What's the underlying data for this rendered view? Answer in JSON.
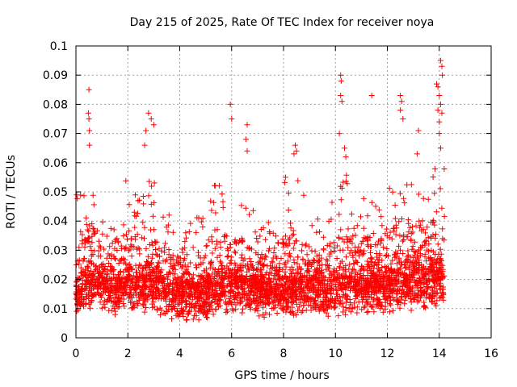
{
  "chart_data": {
    "type": "scatter",
    "title": "Day 215 of 2025, Rate Of TEC Index for receiver noya",
    "xlabel": "GPS time / hours",
    "ylabel": "ROTI / TECUs",
    "xlim": [
      0,
      16
    ],
    "ylim": [
      0,
      0.1
    ],
    "x_ticks": [
      "0",
      "2",
      "4",
      "6",
      "8",
      "10",
      "12",
      "14",
      "16"
    ],
    "y_ticks": [
      "0",
      "0.01",
      "0.02",
      "0.03",
      "0.04",
      "0.05",
      "0.06",
      "0.07",
      "0.08",
      "0.09",
      "0.1"
    ],
    "grid": true,
    "marker": "+",
    "color": "#ff0000",
    "x_data_range": [
      0,
      14.2
    ],
    "envelope": {
      "x": [
        0,
        0.25,
        0.5,
        0.75,
        1.0,
        1.25,
        1.5,
        1.75,
        2.0,
        2.25,
        2.5,
        2.75,
        3.0,
        3.25,
        3.5,
        3.75,
        4.0,
        4.25,
        4.5,
        4.75,
        5.0,
        5.25,
        5.5,
        5.75,
        6.0,
        6.25,
        6.5,
        6.75,
        7.0,
        7.25,
        7.5,
        7.75,
        8.0,
        8.25,
        8.5,
        8.75,
        9.0,
        9.25,
        9.5,
        9.75,
        10.0,
        10.25,
        10.5,
        10.75,
        11.0,
        11.25,
        11.5,
        11.75,
        12.0,
        12.25,
        12.5,
        12.75,
        13.0,
        13.25,
        13.5,
        13.75,
        14.0,
        14.2
      ],
      "median": [
        0.014,
        0.016,
        0.018,
        0.018,
        0.017,
        0.016,
        0.016,
        0.017,
        0.018,
        0.017,
        0.017,
        0.018,
        0.017,
        0.016,
        0.015,
        0.014,
        0.014,
        0.014,
        0.014,
        0.014,
        0.015,
        0.016,
        0.017,
        0.017,
        0.017,
        0.017,
        0.017,
        0.017,
        0.016,
        0.016,
        0.016,
        0.016,
        0.016,
        0.016,
        0.016,
        0.016,
        0.016,
        0.016,
        0.016,
        0.016,
        0.017,
        0.017,
        0.017,
        0.017,
        0.017,
        0.017,
        0.017,
        0.017,
        0.018,
        0.018,
        0.019,
        0.019,
        0.019,
        0.019,
        0.019,
        0.019,
        0.02,
        0.02
      ],
      "upper": [
        0.052,
        0.055,
        0.058,
        0.052,
        0.055,
        0.05,
        0.048,
        0.052,
        0.055,
        0.05,
        0.058,
        0.06,
        0.055,
        0.048,
        0.045,
        0.04,
        0.04,
        0.038,
        0.04,
        0.042,
        0.045,
        0.055,
        0.058,
        0.05,
        0.05,
        0.048,
        0.05,
        0.045,
        0.043,
        0.042,
        0.044,
        0.045,
        0.055,
        0.06,
        0.058,
        0.05,
        0.045,
        0.042,
        0.045,
        0.048,
        0.05,
        0.055,
        0.06,
        0.05,
        0.048,
        0.05,
        0.05,
        0.048,
        0.05,
        0.055,
        0.06,
        0.06,
        0.058,
        0.06,
        0.058,
        0.058,
        0.065,
        0.065
      ],
      "lower": [
        0.006,
        0.007,
        0.008,
        0.008,
        0.007,
        0.007,
        0.007,
        0.007,
        0.008,
        0.007,
        0.007,
        0.008,
        0.007,
        0.006,
        0.006,
        0.005,
        0.005,
        0.005,
        0.005,
        0.005,
        0.005,
        0.006,
        0.006,
        0.006,
        0.006,
        0.006,
        0.006,
        0.006,
        0.006,
        0.006,
        0.006,
        0.006,
        0.006,
        0.006,
        0.006,
        0.006,
        0.005,
        0.005,
        0.005,
        0.005,
        0.006,
        0.006,
        0.006,
        0.006,
        0.006,
        0.006,
        0.006,
        0.006,
        0.007,
        0.007,
        0.007,
        0.007,
        0.007,
        0.007,
        0.007,
        0.008,
        0.008,
        0.008
      ]
    },
    "notable_points": [
      {
        "x": 0.5,
        "y": 0.085
      },
      {
        "x": 0.48,
        "y": 0.077
      },
      {
        "x": 0.5,
        "y": 0.075
      },
      {
        "x": 0.52,
        "y": 0.071
      },
      {
        "x": 0.52,
        "y": 0.066
      },
      {
        "x": 2.8,
        "y": 0.077
      },
      {
        "x": 2.9,
        "y": 0.075
      },
      {
        "x": 3.0,
        "y": 0.073
      },
      {
        "x": 2.7,
        "y": 0.071
      },
      {
        "x": 2.65,
        "y": 0.066
      },
      {
        "x": 5.95,
        "y": 0.08
      },
      {
        "x": 6.0,
        "y": 0.075
      },
      {
        "x": 6.6,
        "y": 0.073
      },
      {
        "x": 6.55,
        "y": 0.068
      },
      {
        "x": 6.6,
        "y": 0.064
      },
      {
        "x": 8.45,
        "y": 0.066
      },
      {
        "x": 8.5,
        "y": 0.064
      },
      {
        "x": 8.4,
        "y": 0.063
      },
      {
        "x": 10.2,
        "y": 0.09
      },
      {
        "x": 10.22,
        "y": 0.088
      },
      {
        "x": 10.2,
        "y": 0.083
      },
      {
        "x": 10.25,
        "y": 0.081
      },
      {
        "x": 10.15,
        "y": 0.07
      },
      {
        "x": 10.35,
        "y": 0.065
      },
      {
        "x": 10.4,
        "y": 0.062
      },
      {
        "x": 11.4,
        "y": 0.083
      },
      {
        "x": 12.5,
        "y": 0.083
      },
      {
        "x": 12.55,
        "y": 0.081
      },
      {
        "x": 12.5,
        "y": 0.078
      },
      {
        "x": 12.6,
        "y": 0.075
      },
      {
        "x": 13.2,
        "y": 0.071
      },
      {
        "x": 13.15,
        "y": 0.063
      },
      {
        "x": 14.05,
        "y": 0.095
      },
      {
        "x": 14.1,
        "y": 0.093
      },
      {
        "x": 14.12,
        "y": 0.09
      },
      {
        "x": 13.9,
        "y": 0.087
      },
      {
        "x": 13.95,
        "y": 0.086
      },
      {
        "x": 14.0,
        "y": 0.083
      },
      {
        "x": 14.05,
        "y": 0.08
      },
      {
        "x": 13.95,
        "y": 0.078
      },
      {
        "x": 14.1,
        "y": 0.077
      },
      {
        "x": 14.0,
        "y": 0.074
      },
      {
        "x": 14.0,
        "y": 0.07
      },
      {
        "x": 14.05,
        "y": 0.065
      }
    ]
  }
}
